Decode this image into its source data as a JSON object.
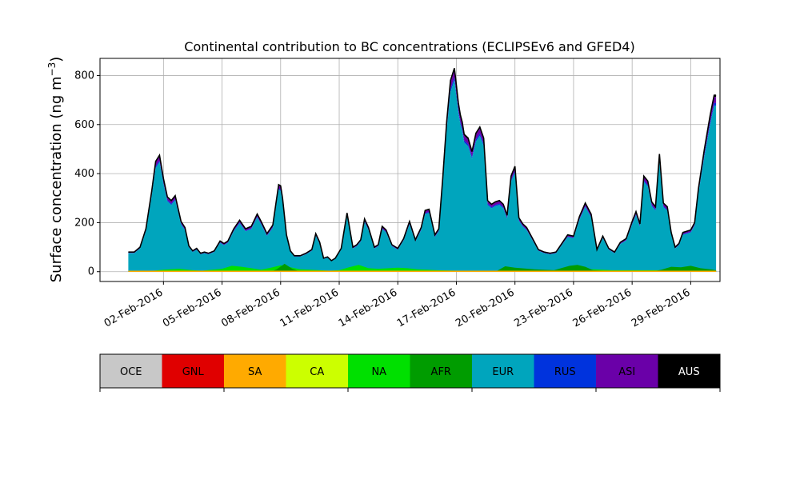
{
  "chart_data": {
    "type": "area",
    "title": "Continental contribution to BC concentrations (ECLIPSEv6 and GFED4)",
    "ylabel_main": "Surface concentration (ng m",
    "ylabel_sup": "−3",
    "ylabel_close": ")",
    "xlabel": "",
    "ylim": [
      -40,
      870
    ],
    "xlim_days": [
      29.75,
      61.5
    ],
    "grid": true,
    "yticks": [
      0,
      200,
      400,
      600,
      800
    ],
    "xticks": [
      {
        "day": 33,
        "label": "02-Feb-2016"
      },
      {
        "day": 36,
        "label": "05-Feb-2016"
      },
      {
        "day": 39,
        "label": "08-Feb-2016"
      },
      {
        "day": 42,
        "label": "11-Feb-2016"
      },
      {
        "day": 45,
        "label": "14-Feb-2016"
      },
      {
        "day": 48,
        "label": "17-Feb-2016"
      },
      {
        "day": 51,
        "label": "20-Feb-2016"
      },
      {
        "day": 54,
        "label": "23-Feb-2016"
      },
      {
        "day": 57,
        "label": "26-Feb-2016"
      },
      {
        "day": 60,
        "label": "29-Feb-2016"
      }
    ],
    "series_order": [
      "OCE",
      "GNL",
      "SA",
      "CA",
      "NA",
      "AFR",
      "EUR",
      "RUS",
      "ASI",
      "AUS"
    ],
    "total": {
      "name": "AUS",
      "x": [
        31.2,
        31.5,
        31.8,
        32.1,
        32.4,
        32.6,
        32.8,
        33.0,
        33.2,
        33.4,
        33.6,
        33.9,
        34.1,
        34.3,
        34.5,
        34.7,
        34.9,
        35.1,
        35.3,
        35.6,
        35.9,
        36.1,
        36.3,
        36.6,
        36.9,
        37.2,
        37.5,
        37.8,
        38.0,
        38.3,
        38.6,
        38.9,
        39.0,
        39.1,
        39.3,
        39.5,
        39.7,
        40.0,
        40.3,
        40.6,
        40.8,
        41.0,
        41.2,
        41.4,
        41.6,
        41.8,
        42.1,
        42.4,
        42.7,
        42.9,
        43.1,
        43.3,
        43.5,
        43.8,
        44.0,
        44.2,
        44.4,
        44.7,
        45.0,
        45.3,
        45.6,
        45.9,
        46.2,
        46.4,
        46.6,
        46.9,
        47.1,
        47.3,
        47.5,
        47.7,
        47.9,
        48.0,
        48.1,
        48.2,
        48.3,
        48.4,
        48.6,
        48.8,
        49.0,
        49.2,
        49.4,
        49.6,
        49.8,
        50.0,
        50.2,
        50.4,
        50.6,
        50.8,
        51.0,
        51.2,
        51.4,
        51.6,
        51.9,
        52.2,
        52.5,
        52.8,
        53.1,
        53.4,
        53.7,
        54.0,
        54.3,
        54.6,
        54.9,
        55.2,
        55.5,
        55.8,
        56.1,
        56.4,
        56.7,
        57.0,
        57.2,
        57.4,
        57.6,
        57.8,
        58.0,
        58.2,
        58.4,
        58.6,
        58.8,
        59.0,
        59.2,
        59.4,
        59.6,
        59.8,
        60.0,
        60.2,
        60.4,
        60.7,
        61.0,
        61.2,
        61.3
      ],
      "values": [
        80,
        80,
        100,
        175,
        330,
        450,
        475,
        380,
        305,
        290,
        310,
        205,
        180,
        105,
        85,
        95,
        75,
        80,
        75,
        85,
        125,
        115,
        125,
        175,
        210,
        175,
        185,
        235,
        205,
        155,
        190,
        355,
        350,
        300,
        150,
        85,
        65,
        65,
        75,
        90,
        155,
        120,
        55,
        60,
        45,
        55,
        95,
        240,
        100,
        110,
        130,
        215,
        180,
        100,
        110,
        185,
        170,
        110,
        95,
        135,
        205,
        130,
        180,
        250,
        255,
        150,
        175,
        380,
        610,
        780,
        830,
        760,
        690,
        640,
        610,
        560,
        545,
        490,
        565,
        590,
        545,
        290,
        275,
        285,
        290,
        275,
        230,
        390,
        430,
        220,
        195,
        180,
        135,
        90,
        80,
        75,
        80,
        115,
        150,
        145,
        225,
        280,
        235,
        90,
        145,
        95,
        80,
        120,
        135,
        205,
        245,
        195,
        390,
        370,
        285,
        265,
        480,
        280,
        265,
        160,
        100,
        115,
        160,
        165,
        170,
        200,
        340,
        500,
        640,
        720,
        720
      ]
    },
    "breakdown": {
      "EUR_top_offset": 0.94,
      "RUS_top_offset": 0.955,
      "ASI_top_offset": 0.99
    },
    "bottom_series": [
      {
        "name": "NA",
        "x": [
          31.2,
          32.5,
          33.0,
          33.8,
          34.5,
          35.0,
          35.5,
          36.0,
          36.5,
          37.0,
          37.5,
          38.0,
          38.5,
          39.0,
          39.5,
          40.0,
          40.5,
          41.0,
          41.5,
          42.0,
          42.5,
          43.0,
          43.5,
          44.0,
          45.0,
          45.5,
          46.0,
          46.5,
          47.0,
          48.0,
          49.0,
          50.0,
          51.0,
          52.0,
          53.0,
          54.0,
          55.0,
          56.0,
          57.0,
          58.0,
          59.0,
          60.0,
          61.0,
          61.3
        ],
        "values": [
          4,
          4,
          8,
          12,
          6,
          4,
          8,
          12,
          24,
          20,
          14,
          8,
          16,
          26,
          18,
          10,
          8,
          6,
          4,
          6,
          18,
          28,
          14,
          12,
          16,
          14,
          10,
          8,
          6,
          4,
          4,
          4,
          6,
          8,
          6,
          6,
          10,
          6,
          6,
          6,
          6,
          10,
          6,
          5
        ]
      },
      {
        "name": "AFR",
        "x": [
          31.2,
          38.5,
          38.8,
          39.2,
          39.6,
          40.0,
          45.0,
          48.5,
          50.0,
          50.5,
          51.0,
          52.0,
          53.0,
          53.8,
          54.2,
          54.6,
          55.0,
          56.5,
          58.0,
          58.5,
          59.0,
          59.5,
          60.0,
          60.5,
          61.0,
          61.3
        ],
        "values": [
          0,
          0,
          10,
          32,
          12,
          0,
          0,
          0,
          0,
          22,
          16,
          10,
          6,
          24,
          28,
          20,
          6,
          0,
          0,
          8,
          20,
          18,
          24,
          14,
          10,
          6
        ]
      }
    ],
    "colorbar": {
      "labels": [
        "OCE",
        "GNL",
        "SA",
        "CA",
        "NA",
        "AFR",
        "EUR",
        "RUS",
        "ASI",
        "AUS"
      ],
      "colors": [
        "#c8c8c8",
        "#e00000",
        "#ffaa00",
        "#ccff00",
        "#00e000",
        "#009c00",
        "#00a5bd",
        "#0033dd",
        "#6a00a8",
        "#000000"
      ],
      "text_colors": [
        "#000000",
        "#000000",
        "#000000",
        "#000000",
        "#000000",
        "#000000",
        "#000000",
        "#000000",
        "#000000",
        "#ffffff"
      ]
    }
  }
}
